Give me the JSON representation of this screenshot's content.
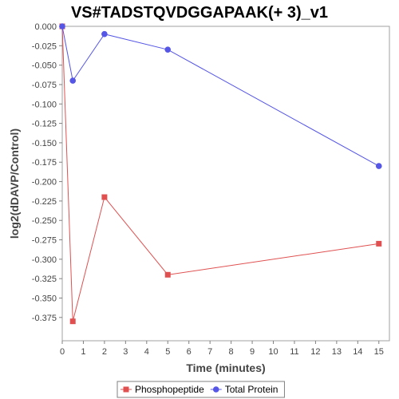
{
  "chart_data": {
    "type": "line",
    "title": "VS#TADSTQVDGGAPAAK(+ 3)_v1",
    "xlabel": "Time (minutes)",
    "ylabel": "log2(dDAVP/Control)",
    "xlim": [
      0,
      15.5
    ],
    "ylim": [
      -0.405,
      0.0
    ],
    "x_ticks": [
      0,
      1,
      2,
      3,
      4,
      5,
      6,
      7,
      8,
      9,
      10,
      11,
      12,
      13,
      14,
      15
    ],
    "y_ticks": [
      0.0,
      -0.025,
      -0.05,
      -0.075,
      -0.1,
      -0.125,
      -0.15,
      -0.175,
      -0.2,
      -0.225,
      -0.25,
      -0.275,
      -0.3,
      -0.325,
      -0.35,
      -0.375
    ],
    "y_tick_labels": [
      "0.000",
      "-0.025",
      "-0.050",
      "-0.075",
      "-0.100",
      "-0.125",
      "-0.150",
      "-0.175",
      "-0.200",
      "-0.225",
      "-0.250",
      "-0.275",
      "-0.300",
      "-0.325",
      "-0.350",
      "-0.375"
    ],
    "grid": false,
    "legend_position": "bottom",
    "series": [
      {
        "name": "Phosphopeptide",
        "color": "#e05050",
        "marker": "square",
        "x": [
          0,
          0.5,
          2,
          5,
          15
        ],
        "y": [
          0.0,
          -0.38,
          -0.22,
          -0.32,
          -0.28
        ]
      },
      {
        "name": "Total Protein",
        "color": "#5555e6",
        "marker": "circle",
        "x": [
          0,
          0.5,
          2,
          5,
          15
        ],
        "y": [
          0.0,
          -0.07,
          -0.01,
          -0.03,
          -0.18
        ]
      }
    ]
  }
}
